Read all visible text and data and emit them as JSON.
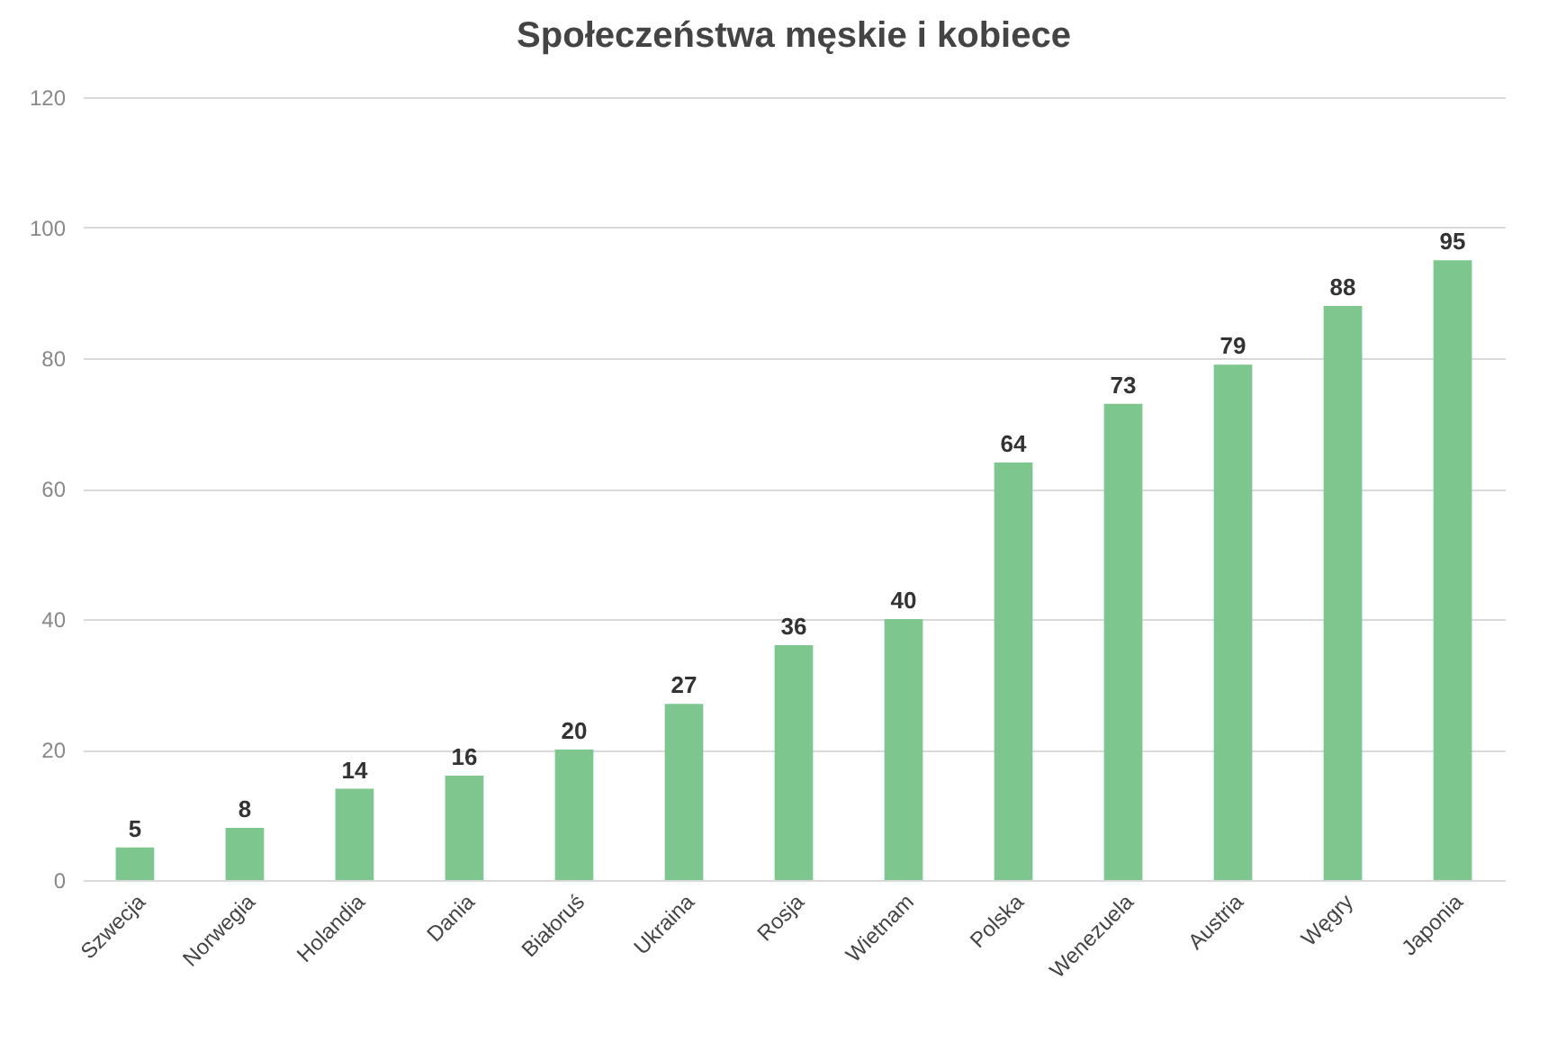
{
  "chart_data": {
    "type": "bar",
    "title": "Społeczeństwa męskie i kobiece",
    "categories": [
      "Szwecja",
      "Norwegia",
      "Holandia",
      "Dania",
      "Białoruś",
      "Ukraina",
      "Rosja",
      "Wietnam",
      "Polska",
      "Wenezuela",
      "Austria",
      "Węgry",
      "Japonia"
    ],
    "values": [
      5,
      8,
      14,
      16,
      20,
      27,
      36,
      40,
      64,
      73,
      79,
      88,
      95
    ],
    "color": "#7dc78e",
    "ylim": [
      0,
      120
    ],
    "yticks": [
      0,
      20,
      40,
      60,
      80,
      100,
      120
    ],
    "grid": "y",
    "data_labels": true
  }
}
